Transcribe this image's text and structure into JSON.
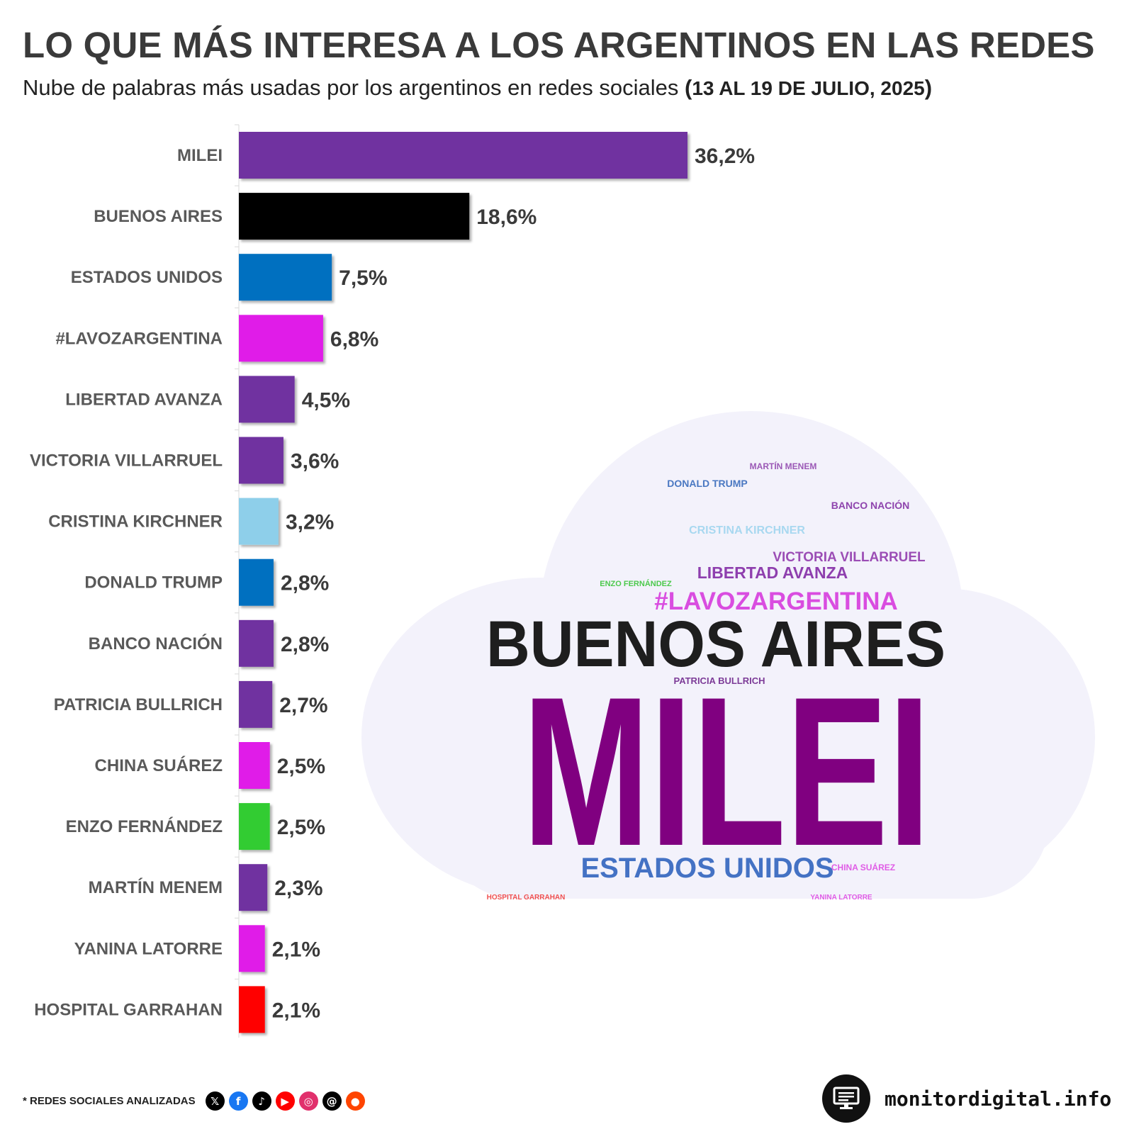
{
  "header": {
    "title": "LO QUE MÁS INTERESA A LOS ARGENTINOS EN LAS REDES",
    "subtitle": "Nube de palabras más usadas por los argentinos en redes sociales ",
    "subtitle_open": "(",
    "subtitle_date": "13 AL 19 DE JULIO, 2025",
    "subtitle_close": ")"
  },
  "chart_data": {
    "type": "bar",
    "orientation": "horizontal",
    "title": "LO QUE MÁS INTERESA A LOS ARGENTINOS EN LAS REDES",
    "xlabel": "",
    "ylabel": "",
    "xlim": [
      0,
      36.2
    ],
    "grid": false,
    "categories": [
      "MILEI",
      "BUENOS AIRES",
      "ESTADOS UNIDOS",
      "#LAVOZARGENTINA",
      "LIBERTAD AVANZA",
      "VICTORIA VILLARRUEL",
      "CRISTINA KIRCHNER",
      "DONALD TRUMP",
      "BANCO NACIÓN",
      "PATRICIA BULLRICH",
      "CHINA SUÁREZ",
      "ENZO FERNÁNDEZ",
      "MARTÍN MENEM",
      "YANINA LATORRE",
      "HOSPITAL GARRAHAN"
    ],
    "values": [
      36.2,
      18.6,
      7.5,
      6.8,
      4.5,
      3.6,
      3.2,
      2.8,
      2.8,
      2.7,
      2.5,
      2.5,
      2.3,
      2.1,
      2.1
    ],
    "value_labels": [
      "36,2%",
      "18,6%",
      "7,5%",
      "6,8%",
      "4,5%",
      "3,6%",
      "3,2%",
      "2,8%",
      "2,8%",
      "2,7%",
      "2,5%",
      "2,5%",
      "2,3%",
      "2,1%",
      "2,1%"
    ],
    "colors": [
      "#7030a0",
      "#000000",
      "#0070c0",
      "#e01ae8",
      "#7030a0",
      "#7030a0",
      "#8ecfea",
      "#0070c0",
      "#7030a0",
      "#7030a0",
      "#e01ae8",
      "#33cc33",
      "#7030a0",
      "#e01ae8",
      "#ff0000"
    ]
  },
  "wordcloud": {
    "words": [
      {
        "text": "MARTÍN MENEM",
        "color": "#9b59b6"
      },
      {
        "text": "DONALD TRUMP",
        "color": "#4a78c2"
      },
      {
        "text": "BANCO NACIÓN",
        "color": "#8e44ad"
      },
      {
        "text": "CRISTINA KIRCHNER",
        "color": "#a8d8f0"
      },
      {
        "text": "VICTORIA VILLARRUEL",
        "color": "#9b4db5"
      },
      {
        "text": "LIBERTAD AVANZA",
        "color": "#8e3fae"
      },
      {
        "text": "ENZO FERNÁNDEZ",
        "color": "#4cc94c"
      },
      {
        "text": "#LAVOZARGENTINA",
        "color": "#d94de0"
      },
      {
        "text": "BUENOS AIRES",
        "color": "#1e1e1e"
      },
      {
        "text": "PATRICIA BULLRICH",
        "color": "#7d3c98"
      },
      {
        "text": "MILEI",
        "color": "#800080"
      },
      {
        "text": "ESTADOS UNIDOS",
        "color": "#4472c4"
      },
      {
        "text": "CHINA SUÁREZ",
        "color": "#e05ce6"
      },
      {
        "text": "HOSPITAL GARRAHAN",
        "color": "#f05050"
      },
      {
        "text": "YANINA LATORRE",
        "color": "#e05ce6"
      }
    ],
    "cloud_color": "#f3f2fb"
  },
  "footer": {
    "networks_label": "* REDES SOCIALES ANALIZADAS",
    "networks": [
      {
        "icon": "x-icon",
        "color": "#000000",
        "glyph": "𝕏"
      },
      {
        "icon": "facebook-icon",
        "color": "#1877f2",
        "glyph": "f"
      },
      {
        "icon": "tiktok-icon",
        "color": "#000000",
        "glyph": "♪"
      },
      {
        "icon": "youtube-icon",
        "color": "#ff0000",
        "glyph": "▶"
      },
      {
        "icon": "instagram-icon",
        "color": "#e1306c",
        "glyph": "◎"
      },
      {
        "icon": "threads-icon",
        "color": "#000000",
        "glyph": "@"
      },
      {
        "icon": "reddit-icon",
        "color": "#ff4500",
        "glyph": "●"
      }
    ],
    "brand": "monitordigital.info",
    "brand_icon": "monitor-icon"
  }
}
